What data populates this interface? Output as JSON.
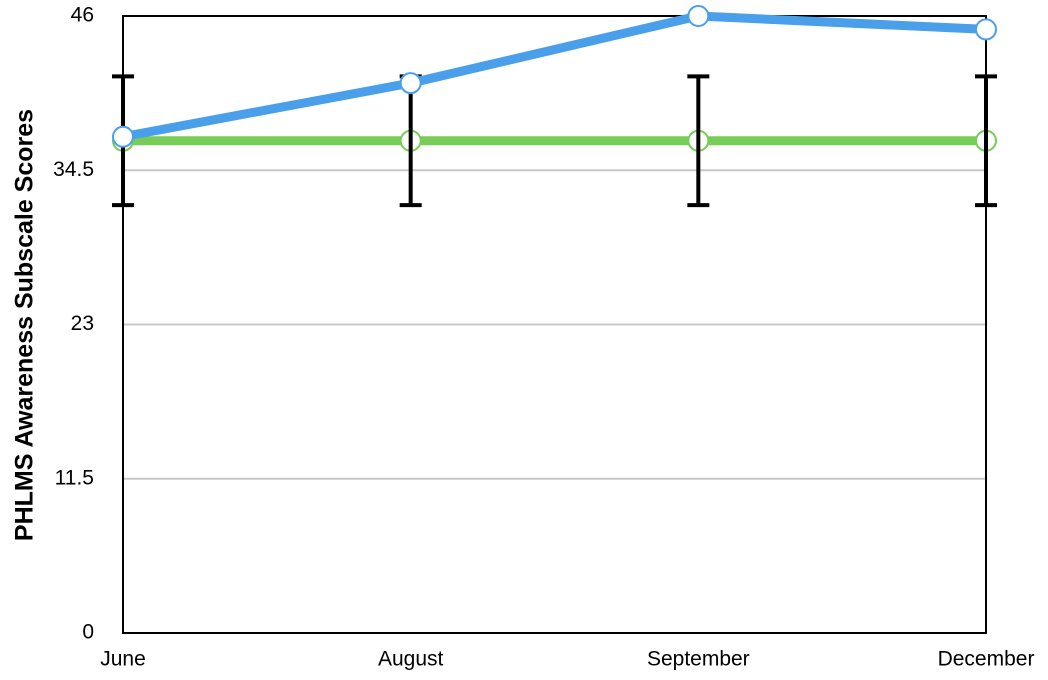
{
  "chart_data": {
    "type": "line",
    "y_label": "PHLMS Awareness Subscale Scores",
    "categories": [
      "June",
      "August",
      "September",
      "December"
    ],
    "series": [
      {
        "color": "#4a9fea",
        "values": [
          37,
          41,
          46,
          45
        ]
      },
      {
        "color": "#77cc55",
        "values": [
          36.7,
          36.7,
          36.7,
          36.7
        ],
        "errors": [
          4.8,
          4.8,
          4.8,
          4.8
        ]
      }
    ],
    "ylim": [
      0,
      46
    ],
    "yticks": [
      0,
      11.5,
      23,
      34.5,
      46
    ],
    "grid": true
  }
}
